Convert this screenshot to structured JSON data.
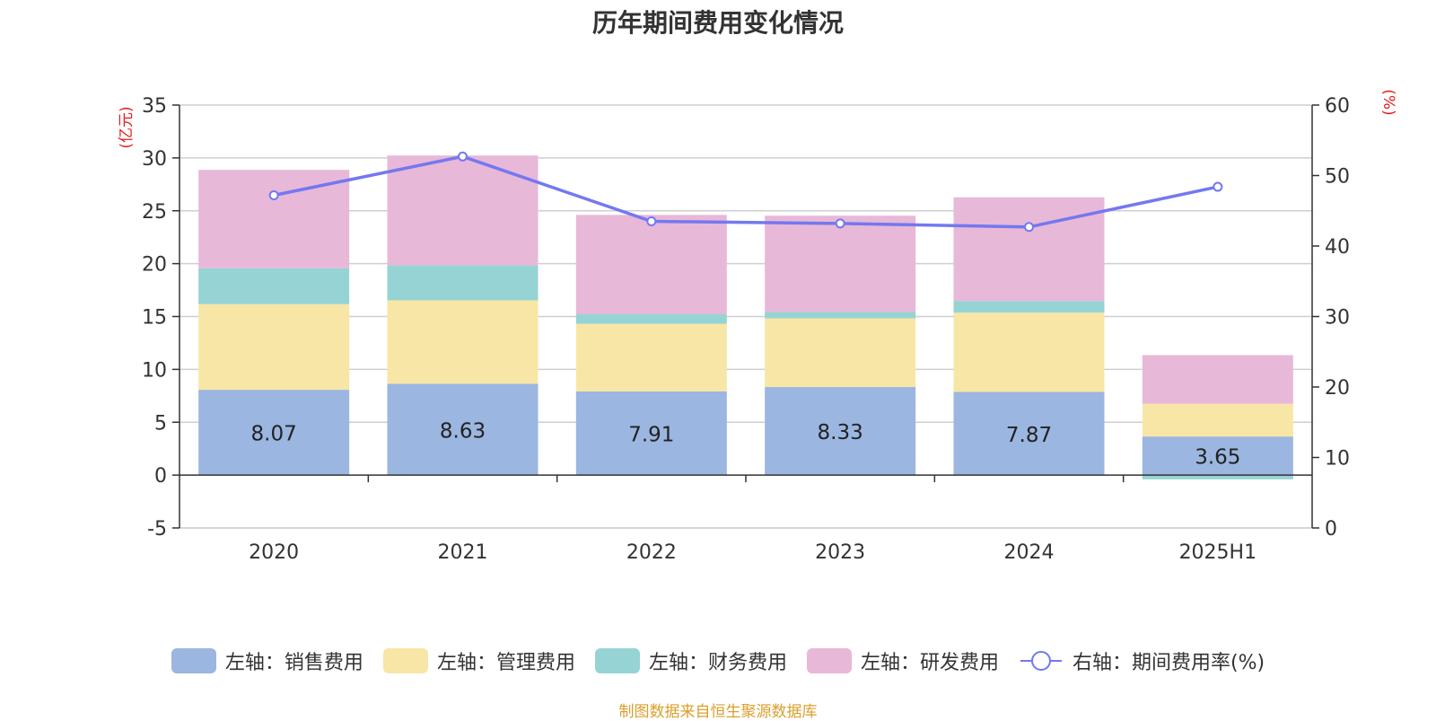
{
  "title": "历年期间费用变化情况",
  "source_note": "制图数据来自恒生聚源数据库",
  "colors": {
    "sales": "#9bb6e0",
    "admin": "#f8e6a6",
    "finance": "#96d3d4",
    "rd": "#e8b8d8",
    "line": "#7378f0",
    "unit_red": "#e02020",
    "source": "#d9a02c"
  },
  "chart_data": {
    "type": "bar",
    "title": "历年期间费用变化情况",
    "categories": [
      "2020",
      "2021",
      "2022",
      "2023",
      "2024",
      "2025H1"
    ],
    "left_axis": {
      "unit_label": "(亿元)",
      "ylim": [
        -5,
        35
      ],
      "ticks": [
        "35",
        "30",
        "25",
        "20",
        "15",
        "10",
        "5",
        "0",
        "-5"
      ]
    },
    "right_axis": {
      "unit_label": "(%)",
      "ylim": [
        0,
        60
      ],
      "ticks": [
        "60",
        "50",
        "40",
        "30",
        "20",
        "10",
        "0"
      ]
    },
    "series": [
      {
        "name": "左轴：销售费用",
        "key": "sales",
        "values": [
          8.07,
          8.63,
          7.91,
          8.33,
          7.87,
          3.65
        ]
      },
      {
        "name": "左轴：管理费用",
        "key": "admin",
        "values": [
          8.1,
          7.9,
          6.4,
          6.5,
          7.5,
          3.1
        ]
      },
      {
        "name": "左轴：财务费用",
        "key": "finance",
        "values": [
          3.4,
          3.3,
          0.9,
          0.6,
          1.1,
          -0.4
        ]
      },
      {
        "name": "左轴：研发费用",
        "key": "rd",
        "values": [
          9.3,
          10.4,
          9.4,
          9.1,
          9.8,
          4.6
        ]
      }
    ],
    "data_labels": [
      "8.07",
      "8.63",
      "7.91",
      "8.33",
      "7.87",
      "3.65"
    ],
    "line_series": {
      "name": "右轴：期间费用率(%)",
      "values": [
        47.2,
        52.7,
        43.5,
        43.2,
        42.7,
        48.4
      ]
    },
    "grid": true,
    "legend_position": "bottom"
  }
}
